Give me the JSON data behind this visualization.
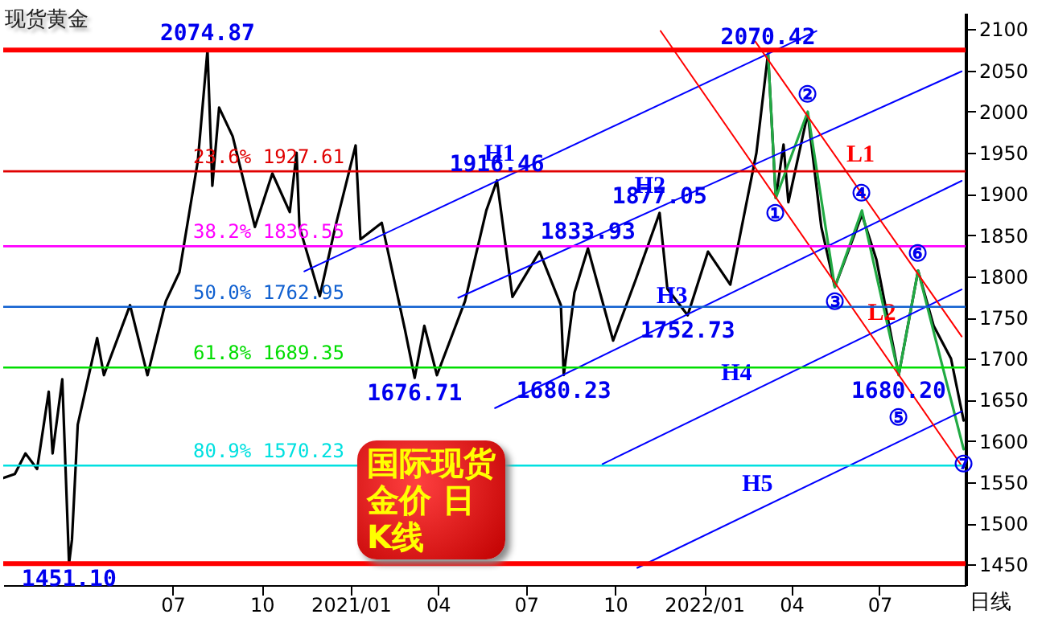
{
  "chart_data": {
    "type": "line",
    "title": "现货黄金",
    "xlabel": "日线",
    "xlim": [
      "2020-01-08",
      "2022-09-28"
    ],
    "ylim": [
      1425,
      2120
    ],
    "xticks": [
      {
        "value": "2020-07-01",
        "label": "07"
      },
      {
        "value": "2020-10-01",
        "label": "10"
      },
      {
        "value": "2021-01-01",
        "label": "2021/01"
      },
      {
        "value": "2021-04-01",
        "label": "04"
      },
      {
        "value": "2021-07-01",
        "label": "07"
      },
      {
        "value": "2021-10-01",
        "label": "10"
      },
      {
        "value": "2022-01-01",
        "label": "2022/01"
      },
      {
        "value": "2022-04-01",
        "label": "04"
      },
      {
        "value": "2022-07-01",
        "label": "07"
      }
    ],
    "yticks": [
      1450,
      1500,
      1550,
      1600,
      1650,
      1700,
      1750,
      1800,
      1850,
      1900,
      1950,
      2000,
      2050,
      2100
    ],
    "ref_lines": [
      {
        "axis": "y",
        "value": 2074.87,
        "color": "#ff0000"
      },
      {
        "axis": "y",
        "value": 1927.61,
        "label": "23.6%  1927.61",
        "color": "#e00000"
      },
      {
        "axis": "y",
        "value": 1836.55,
        "label": "38.2%  1836.55",
        "color": "#ff00ff"
      },
      {
        "axis": "y",
        "value": 1762.95,
        "label": "50.0%  1762.95",
        "color": "#1060d0"
      },
      {
        "axis": "y",
        "value": 1689.35,
        "label": "61.8%  1689.35",
        "color": "#00dd00"
      },
      {
        "axis": "y",
        "value": 1570.23,
        "label": "80.9%  1570.23",
        "color": "#00e0e0"
      },
      {
        "axis": "y",
        "value": 1451.1,
        "color": "#ff0000"
      }
    ],
    "series": [
      {
        "color": "#000000",
        "x": [
          "2020-01-08",
          "2020-01-20",
          "2020-01-31",
          "2020-02-12",
          "2020-02-24",
          "2020-02-28",
          "2020-03-09",
          "2020-03-16",
          "2020-03-19",
          "2020-03-25",
          "2020-04-14",
          "2020-04-21",
          "2020-05-18",
          "2020-06-05",
          "2020-06-24",
          "2020-07-08",
          "2020-07-27",
          "2020-08-06",
          "2020-08-11",
          "2020-08-18",
          "2020-09-01",
          "2020-09-24",
          "2020-10-12",
          "2020-10-30",
          "2020-11-06",
          "2020-11-09",
          "2020-11-30",
          "2020-12-16",
          "2021-01-06",
          "2021-01-11",
          "2021-02-02",
          "2021-02-26",
          "2021-03-08",
          "2021-03-18",
          "2021-03-31",
          "2021-04-29",
          "2021-05-21",
          "2021-06-01",
          "2021-06-17",
          "2021-07-15",
          "2021-08-06",
          "2021-08-09",
          "2021-08-20",
          "2021-09-03",
          "2021-09-29",
          "2021-10-22",
          "2021-11-16",
          "2021-11-24",
          "2021-12-15",
          "2022-01-05",
          "2022-01-28",
          "2022-02-24",
          "2022-03-08",
          "2022-03-16",
          "2022-03-24",
          "2022-03-29",
          "2022-04-18",
          "2022-05-02",
          "2022-05-16",
          "2022-06-13",
          "2022-06-28",
          "2022-07-21",
          "2022-08-10",
          "2022-08-26",
          "2022-09-13",
          "2022-09-26"
        ],
        "values": [
          1555,
          1560,
          1585,
          1566,
          1660,
          1585,
          1675,
          1451.1,
          1480,
          1620,
          1725,
          1680,
          1765,
          1680,
          1770,
          1805,
          1940,
          2074.87,
          1910,
          2005,
          1970,
          1860,
          1925,
          1878,
          1950,
          1860,
          1776,
          1860,
          1959,
          1845,
          1865,
          1735,
          1676.71,
          1740,
          1680,
          1770,
          1880,
          1916.46,
          1775,
          1830,
          1765,
          1680.23,
          1780,
          1833.93,
          1722,
          1795,
          1877.05,
          1785,
          1752.73,
          1830,
          1790,
          1950,
          2070.42,
          1895,
          1960,
          1890,
          1998,
          1860,
          1787,
          1875,
          1820,
          1680.2,
          1807,
          1740,
          1700,
          1625
        ]
      },
      {
        "color": "#22aa44",
        "x": [
          "2022-03-08",
          "2022-03-16",
          "2022-04-18",
          "2022-05-16",
          "2022-06-13",
          "2022-07-21",
          "2022-08-10",
          "2022-09-26"
        ],
        "values": [
          2070.42,
          1895,
          2000,
          1787,
          1880,
          1680.2,
          1807,
          1590
        ]
      },
      {
        "name": "H1",
        "color": "#0000ff",
        "x": [
          "2020-11-14",
          "2022-04-27"
        ],
        "values": [
          1806,
          2098
        ]
      },
      {
        "name": "H2",
        "color": "#0000ff",
        "x": [
          "2021-04-22",
          "2022-09-24"
        ],
        "values": [
          1774,
          2049
        ]
      },
      {
        "name": "H3",
        "color": "#0000ff",
        "x": [
          "2021-05-30",
          "2022-09-24"
        ],
        "values": [
          1640,
          1916
        ]
      },
      {
        "name": "H4",
        "color": "#0000ff",
        "x": [
          "2021-09-18",
          "2022-09-24"
        ],
        "values": [
          1572,
          1784
        ]
      },
      {
        "name": "H5",
        "color": "#0000ff",
        "x": [
          "2021-10-24",
          "2022-09-24"
        ],
        "values": [
          1446,
          1636
        ]
      },
      {
        "name": "L1",
        "color": "#ff0000",
        "x": [
          "2022-02-23",
          "2022-09-24"
        ],
        "values": [
          2085,
          1727
        ]
      },
      {
        "name": "L2",
        "color": "#ff0000",
        "x": [
          "2021-11-17",
          "2022-09-24"
        ],
        "values": [
          2098,
          1570
        ]
      }
    ],
    "annotations": [
      {
        "text": "2074.87",
        "x": "2020-08-06",
        "y": 2074.87
      },
      {
        "text": "1451.10",
        "x": "2020-03-16",
        "y": 1451.1
      },
      {
        "text": "1916.46",
        "x": "2021-06-01",
        "y": 1916.46
      },
      {
        "text": "1676.71",
        "x": "2021-03-08",
        "y": 1676.71
      },
      {
        "text": "1833.93",
        "x": "2021-09-03",
        "y": 1833.93
      },
      {
        "text": "1877.05",
        "x": "2021-11-16",
        "y": 1877.05
      },
      {
        "text": "1680.23",
        "x": "2021-08-09",
        "y": 1680.23
      },
      {
        "text": "1752.73",
        "x": "2021-12-15",
        "y": 1752.73
      },
      {
        "text": "2070.42",
        "x": "2022-03-08",
        "y": 2070.42
      },
      {
        "text": "1680.20",
        "x": "2022-07-21",
        "y": 1680.2
      },
      {
        "text": "①",
        "x": "2022-03-16",
        "y": 1895
      },
      {
        "text": "②",
        "x": "2022-04-18",
        "y": 2000
      },
      {
        "text": "③",
        "x": "2022-05-16",
        "y": 1787
      },
      {
        "text": "④",
        "x": "2022-06-13",
        "y": 1880
      },
      {
        "text": "⑤",
        "x": "2022-07-21",
        "y": 1680.2
      },
      {
        "text": "⑥",
        "x": "2022-08-10",
        "y": 1807
      },
      {
        "text": "⑦",
        "x": "2022-09-26",
        "y": 1590
      },
      "国际现货金价 日 K线"
    ]
  }
}
